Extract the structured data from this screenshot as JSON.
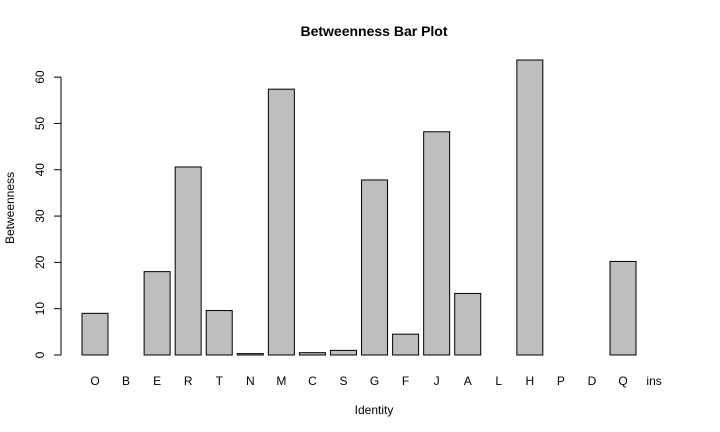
{
  "chart_data": {
    "type": "bar",
    "title": "Betweenness Bar Plot",
    "xlabel": "Identity",
    "ylabel": "Betweenness",
    "categories": [
      "O",
      "B",
      "E",
      "R",
      "T",
      "N",
      "M",
      "C",
      "S",
      "G",
      "F",
      "J",
      "A",
      "L",
      "H",
      "P",
      "D",
      "Q",
      "ins"
    ],
    "values": [
      9.0,
      0.0,
      18.0,
      40.6,
      9.6,
      0.3,
      57.4,
      0.5,
      1.0,
      37.8,
      4.5,
      48.2,
      13.3,
      0.0,
      63.7,
      0.0,
      0.0,
      20.2,
      0.0
    ],
    "yticks": [
      0,
      10,
      20,
      30,
      40,
      50,
      60
    ],
    "ylim": [
      0,
      63.7
    ],
    "grid": false,
    "colors": {
      "bar_fill": "#bebebe",
      "bar_stroke": "#000000"
    }
  }
}
